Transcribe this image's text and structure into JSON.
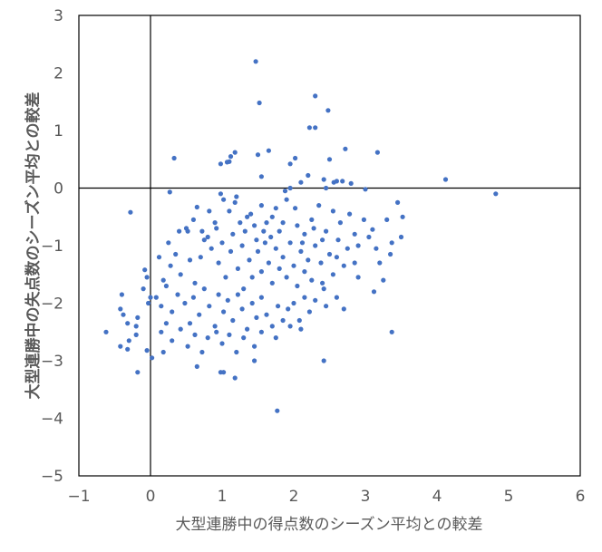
{
  "chart_data": {
    "type": "scatter",
    "title": "",
    "xlabel": "大型連勝中の得点数のシーズン平均との較差",
    "ylabel": "大型連勝中の失点数のシーズン平均との較差",
    "xlim": [
      -1,
      6
    ],
    "ylim": [
      -5,
      3
    ],
    "xticks": [
      -1,
      0,
      1,
      2,
      3,
      4,
      5,
      6
    ],
    "yticks": [
      -5,
      -4,
      -3,
      -2,
      -1,
      0,
      1,
      2,
      3
    ],
    "grid": false,
    "legend": null,
    "reference_lines": {
      "x": 0,
      "y": 0
    },
    "marker_color": "#4472C4",
    "series": [
      {
        "name": "series1",
        "points": [
          [
            1.47,
            2.2
          ],
          [
            1.52,
            1.48
          ],
          [
            2.3,
            1.6
          ],
          [
            2.48,
            1.35
          ],
          [
            2.22,
            1.05
          ],
          [
            2.3,
            1.05
          ],
          [
            1.12,
            0.55
          ],
          [
            1.18,
            0.62
          ],
          [
            1.5,
            0.58
          ],
          [
            1.65,
            0.65
          ],
          [
            2.72,
            0.68
          ],
          [
            3.17,
            0.62
          ],
          [
            0.33,
            0.52
          ],
          [
            0.98,
            0.42
          ],
          [
            1.07,
            0.45
          ],
          [
            1.1,
            0.46
          ],
          [
            1.55,
            0.2
          ],
          [
            1.95,
            0.42
          ],
          [
            2.02,
            0.52
          ],
          [
            2.2,
            0.22
          ],
          [
            2.42,
            0.15
          ],
          [
            2.5,
            0.5
          ],
          [
            2.56,
            0.1
          ],
          [
            2.6,
            0.12
          ],
          [
            2.68,
            0.12
          ],
          [
            2.8,
            0.08
          ],
          [
            2.45,
            0.0
          ],
          [
            4.12,
            0.15
          ],
          [
            4.82,
            -0.1
          ],
          [
            1.95,
            0.0
          ],
          [
            2.1,
            0.1
          ],
          [
            1.88,
            -0.05
          ],
          [
            3.0,
            -0.02
          ],
          [
            0.27,
            -0.07
          ],
          [
            -0.28,
            -0.42
          ],
          [
            -0.4,
            -1.85
          ],
          [
            -0.62,
            -2.5
          ],
          [
            0.5,
            -0.7
          ],
          [
            0.52,
            -0.75
          ],
          [
            0.65,
            -0.33
          ],
          [
            0.75,
            -0.9
          ],
          [
            0.98,
            -0.1
          ],
          [
            1.02,
            -0.2
          ],
          [
            1.1,
            -0.4
          ],
          [
            1.18,
            -0.25
          ],
          [
            1.2,
            -0.15
          ],
          [
            1.35,
            -0.5
          ],
          [
            1.4,
            -0.45
          ],
          [
            1.48,
            -0.9
          ],
          [
            1.55,
            -0.3
          ],
          [
            1.62,
            -0.6
          ],
          [
            1.7,
            -0.5
          ],
          [
            1.75,
            -0.35
          ],
          [
            1.8,
            -0.75
          ],
          [
            1.9,
            -0.2
          ],
          [
            2.02,
            -0.35
          ],
          [
            2.05,
            -0.65
          ],
          [
            2.15,
            -0.8
          ],
          [
            2.25,
            -0.55
          ],
          [
            2.35,
            -0.3
          ],
          [
            2.45,
            -0.75
          ],
          [
            2.55,
            -0.4
          ],
          [
            2.62,
            -0.9
          ],
          [
            2.78,
            -0.45
          ],
          [
            2.85,
            -0.8
          ],
          [
            2.98,
            -0.55
          ],
          [
            3.1,
            -0.72
          ],
          [
            3.3,
            -0.55
          ],
          [
            3.37,
            -0.95
          ],
          [
            3.45,
            -0.25
          ],
          [
            3.52,
            -0.5
          ],
          [
            3.5,
            -0.85
          ],
          [
            3.35,
            -1.15
          ],
          [
            3.15,
            -1.05
          ],
          [
            3.2,
            -1.3
          ],
          [
            3.25,
            -1.6
          ],
          [
            3.12,
            -1.8
          ],
          [
            3.37,
            -2.5
          ],
          [
            0.25,
            -0.95
          ],
          [
            0.35,
            -1.15
          ],
          [
            0.42,
            -1.5
          ],
          [
            0.55,
            -1.25
          ],
          [
            0.62,
            -1.65
          ],
          [
            0.7,
            -1.2
          ],
          [
            0.8,
            -0.85
          ],
          [
            0.85,
            -1.05
          ],
          [
            0.92,
            -0.7
          ],
          [
            0.95,
            -1.3
          ],
          [
            1.0,
            -0.95
          ],
          [
            1.05,
            -1.55
          ],
          [
            1.12,
            -1.1
          ],
          [
            1.15,
            -0.8
          ],
          [
            1.22,
            -1.4
          ],
          [
            1.28,
            -1.0
          ],
          [
            1.3,
            -1.75
          ],
          [
            1.38,
            -1.25
          ],
          [
            1.42,
            -1.55
          ],
          [
            1.5,
            -1.1
          ],
          [
            1.55,
            -1.45
          ],
          [
            1.6,
            -0.95
          ],
          [
            1.65,
            -1.3
          ],
          [
            1.7,
            -1.65
          ],
          [
            1.75,
            -1.05
          ],
          [
            1.8,
            -1.4
          ],
          [
            1.85,
            -1.2
          ],
          [
            1.9,
            -1.55
          ],
          [
            1.95,
            -0.95
          ],
          [
            2.0,
            -1.35
          ],
          [
            2.05,
            -1.7
          ],
          [
            2.1,
            -1.1
          ],
          [
            2.15,
            -1.45
          ],
          [
            2.2,
            -1.25
          ],
          [
            2.25,
            -1.6
          ],
          [
            2.3,
            -1.0
          ],
          [
            2.38,
            -1.3
          ],
          [
            2.42,
            -1.75
          ],
          [
            2.5,
            -1.15
          ],
          [
            2.55,
            -1.5
          ],
          [
            2.6,
            -1.2
          ],
          [
            2.7,
            -1.35
          ],
          [
            2.75,
            -1.05
          ],
          [
            2.85,
            -1.3
          ],
          [
            2.9,
            -1.55
          ],
          [
            0.12,
            -1.2
          ],
          [
            0.18,
            -1.6
          ],
          [
            0.28,
            -1.35
          ],
          [
            -0.08,
            -1.42
          ],
          [
            -0.05,
            -1.55
          ],
          [
            -0.1,
            -1.75
          ],
          [
            -0.03,
            -2.0
          ],
          [
            0.0,
            -1.9
          ],
          [
            0.08,
            -1.9
          ],
          [
            0.15,
            -2.05
          ],
          [
            0.22,
            -1.7
          ],
          [
            0.3,
            -2.15
          ],
          [
            0.38,
            -1.85
          ],
          [
            0.48,
            -2.0
          ],
          [
            0.55,
            -2.35
          ],
          [
            0.6,
            -1.9
          ],
          [
            0.68,
            -2.2
          ],
          [
            0.75,
            -1.75
          ],
          [
            0.82,
            -2.05
          ],
          [
            0.9,
            -2.4
          ],
          [
            0.95,
            -1.85
          ],
          [
            1.02,
            -2.15
          ],
          [
            1.08,
            -1.95
          ],
          [
            1.15,
            -2.3
          ],
          [
            1.22,
            -1.85
          ],
          [
            1.28,
            -2.1
          ],
          [
            1.35,
            -2.45
          ],
          [
            1.42,
            -2.0
          ],
          [
            1.48,
            -2.25
          ],
          [
            1.55,
            -1.9
          ],
          [
            1.62,
            -2.2
          ],
          [
            1.7,
            -2.4
          ],
          [
            1.78,
            -2.05
          ],
          [
            1.85,
            -2.3
          ],
          [
            1.92,
            -2.1
          ],
          [
            2.0,
            -2.0
          ],
          [
            2.08,
            -2.3
          ],
          [
            2.15,
            -1.9
          ],
          [
            2.22,
            -2.15
          ],
          [
            2.3,
            -1.95
          ],
          [
            2.45,
            -2.05
          ],
          [
            2.6,
            -1.9
          ],
          [
            2.7,
            -2.1
          ],
          [
            2.4,
            -1.65
          ],
          [
            -0.42,
            -2.1
          ],
          [
            -0.38,
            -2.2
          ],
          [
            -0.32,
            -2.35
          ],
          [
            -0.18,
            -2.25
          ],
          [
            -0.2,
            -2.4
          ],
          [
            -0.42,
            -2.75
          ],
          [
            -0.32,
            -2.8
          ],
          [
            -0.2,
            -2.55
          ],
          [
            -0.3,
            -2.65
          ],
          [
            -0.05,
            -2.82
          ],
          [
            0.02,
            -2.95
          ],
          [
            0.15,
            -2.5
          ],
          [
            0.22,
            -2.35
          ],
          [
            0.3,
            -2.65
          ],
          [
            0.42,
            -2.45
          ],
          [
            0.52,
            -2.75
          ],
          [
            0.62,
            -2.55
          ],
          [
            0.72,
            -2.85
          ],
          [
            0.8,
            -2.6
          ],
          [
            0.92,
            -2.5
          ],
          [
            1.0,
            -2.7
          ],
          [
            1.1,
            -2.55
          ],
          [
            1.2,
            -2.85
          ],
          [
            1.3,
            -2.6
          ],
          [
            1.45,
            -2.75
          ],
          [
            1.55,
            -2.5
          ],
          [
            1.75,
            -2.6
          ],
          [
            1.95,
            -2.4
          ],
          [
            2.1,
            -2.45
          ],
          [
            -0.18,
            -3.2
          ],
          [
            0.18,
            -2.85
          ],
          [
            0.65,
            -3.1
          ],
          [
            0.98,
            -3.2
          ],
          [
            1.02,
            -3.2
          ],
          [
            1.18,
            -3.3
          ],
          [
            1.45,
            -3.0
          ],
          [
            2.42,
            -3.0
          ],
          [
            1.77,
            -3.87
          ],
          [
            0.4,
            -0.75
          ],
          [
            0.6,
            -0.55
          ],
          [
            0.72,
            -0.75
          ],
          [
            0.82,
            -0.4
          ],
          [
            0.9,
            -0.6
          ],
          [
            1.25,
            -0.6
          ],
          [
            1.32,
            -0.75
          ],
          [
            1.45,
            -0.65
          ],
          [
            1.58,
            -0.75
          ],
          [
            1.68,
            -0.85
          ],
          [
            1.85,
            -0.6
          ],
          [
            2.12,
            -0.95
          ],
          [
            2.28,
            -0.7
          ],
          [
            2.4,
            -0.9
          ],
          [
            2.65,
            -0.6
          ],
          [
            2.9,
            -1.0
          ],
          [
            3.05,
            -0.85
          ]
        ]
      }
    ]
  }
}
